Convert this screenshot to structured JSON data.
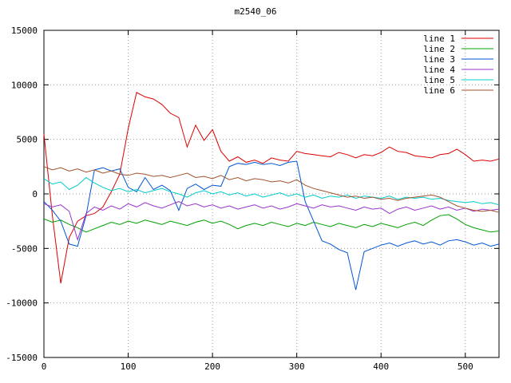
{
  "title": "m2540_06",
  "chart_data": {
    "type": "line",
    "title": "m2540_06",
    "xlabel": "",
    "ylabel": "",
    "xlim": [
      0,
      540
    ],
    "ylim": [
      -15000,
      15000
    ],
    "x_ticks": [
      0,
      100,
      200,
      300,
      400,
      500
    ],
    "y_ticks": [
      -15000,
      -10000,
      -5000,
      0,
      5000,
      10000,
      15000
    ],
    "grid": true,
    "grid_style": "dotted",
    "legend_position": "top-right-inside",
    "background": "#ffffff",
    "border_color": "#000000",
    "grid_color": "#a0a0a0",
    "x_start": 0,
    "x_step": 10,
    "series": [
      {
        "name": "line 1",
        "color": "#dd0000",
        "values": [
          5500,
          -2000,
          -8200,
          -4000,
          -2500,
          -2000,
          -1800,
          -1200,
          200,
          1800,
          6000,
          9300,
          8900,
          8700,
          8200,
          7400,
          7000,
          4300,
          6300,
          4900,
          5900,
          3900,
          3000,
          3400,
          2900,
          3100,
          2800,
          3300,
          3100,
          3000,
          3900,
          3700,
          3600,
          3500,
          3400,
          3800,
          3600,
          3300,
          3600,
          3500,
          3800,
          4300,
          3900,
          3800,
          3500,
          3400,
          3300,
          3600,
          3700,
          4100,
          3600,
          3000,
          3100,
          3000,
          3200
        ]
      },
      {
        "name": "line 2",
        "color": "#00a000",
        "values": [
          -2300,
          -2600,
          -2400,
          -2800,
          -3100,
          -3500,
          -3200,
          -2900,
          -2600,
          -2800,
          -2500,
          -2700,
          -2400,
          -2600,
          -2800,
          -2500,
          -2700,
          -2900,
          -2600,
          -2400,
          -2700,
          -2500,
          -2800,
          -3200,
          -2900,
          -2700,
          -2900,
          -2600,
          -2800,
          -3000,
          -2700,
          -2900,
          -2600,
          -2800,
          -3000,
          -2700,
          -2900,
          -3100,
          -2800,
          -3000,
          -2700,
          -2900,
          -3100,
          -2800,
          -2600,
          -2900,
          -2400,
          -2000,
          -1900,
          -2300,
          -2800,
          -3100,
          -3300,
          -3500,
          -3400
        ]
      },
      {
        "name": "line 3",
        "color": "#0055d4",
        "values": [
          -700,
          -1500,
          -2500,
          -4600,
          -4800,
          -2000,
          2200,
          2400,
          2100,
          2300,
          600,
          200,
          1500,
          400,
          800,
          300,
          -1500,
          500,
          900,
          400,
          800,
          700,
          2500,
          2800,
          2700,
          2900,
          2700,
          2800,
          2600,
          2900,
          3000,
          -700,
          -2500,
          -4300,
          -4600,
          -5100,
          -5400,
          -8800,
          -5300,
          -5000,
          -4700,
          -4500,
          -4800,
          -4500,
          -4300,
          -4600,
          -4400,
          -4700,
          -4300,
          -4200,
          -4400,
          -4700,
          -4500,
          -4800,
          -4600
        ]
      },
      {
        "name": "line 4",
        "color": "#9933cc",
        "values": [
          -900,
          -1200,
          -1000,
          -1600,
          -4200,
          -1800,
          -1200,
          -1500,
          -1100,
          -1400,
          -900,
          -1200,
          -800,
          -1100,
          -1300,
          -1000,
          -700,
          -1100,
          -900,
          -1200,
          -1000,
          -1300,
          -1100,
          -1400,
          -1200,
          -1000,
          -1300,
          -1100,
          -1400,
          -1200,
          -900,
          -1100,
          -1300,
          -1000,
          -1200,
          -1100,
          -1300,
          -1500,
          -1200,
          -1400,
          -1300,
          -1800,
          -1400,
          -1200,
          -1500,
          -1300,
          -1100,
          -1400,
          -1200,
          -1500,
          -1300,
          -1600,
          -1400,
          -1500,
          -1400
        ]
      },
      {
        "name": "line 5",
        "color": "#00cccc",
        "values": [
          1400,
          900,
          1100,
          400,
          800,
          1500,
          1000,
          600,
          300,
          500,
          200,
          400,
          100,
          300,
          500,
          200,
          0,
          -300,
          100,
          300,
          0,
          200,
          -100,
          100,
          -200,
          0,
          -300,
          -100,
          100,
          -200,
          0,
          -300,
          -100,
          -400,
          -200,
          -300,
          -100,
          -400,
          -200,
          -300,
          -400,
          -200,
          -500,
          -300,
          -400,
          -300,
          -500,
          -400,
          -600,
          -700,
          -800,
          -700,
          -900,
          -800,
          -1000
        ]
      },
      {
        "name": "line 6",
        "color": "#a0522d",
        "values": [
          2500,
          2200,
          2400,
          2100,
          2300,
          2000,
          2200,
          1900,
          2100,
          1800,
          1700,
          1900,
          1800,
          1600,
          1700,
          1500,
          1700,
          1900,
          1500,
          1600,
          1400,
          1700,
          1300,
          1500,
          1200,
          1400,
          1300,
          1100,
          1200,
          1000,
          1300,
          800,
          500,
          300,
          100,
          -100,
          -300,
          -200,
          -400,
          -300,
          -500,
          -400,
          -600,
          -400,
          -300,
          -200,
          -100,
          -300,
          -700,
          -1100,
          -1300,
          -1500,
          -1600,
          -1500,
          -1700
        ]
      }
    ]
  }
}
